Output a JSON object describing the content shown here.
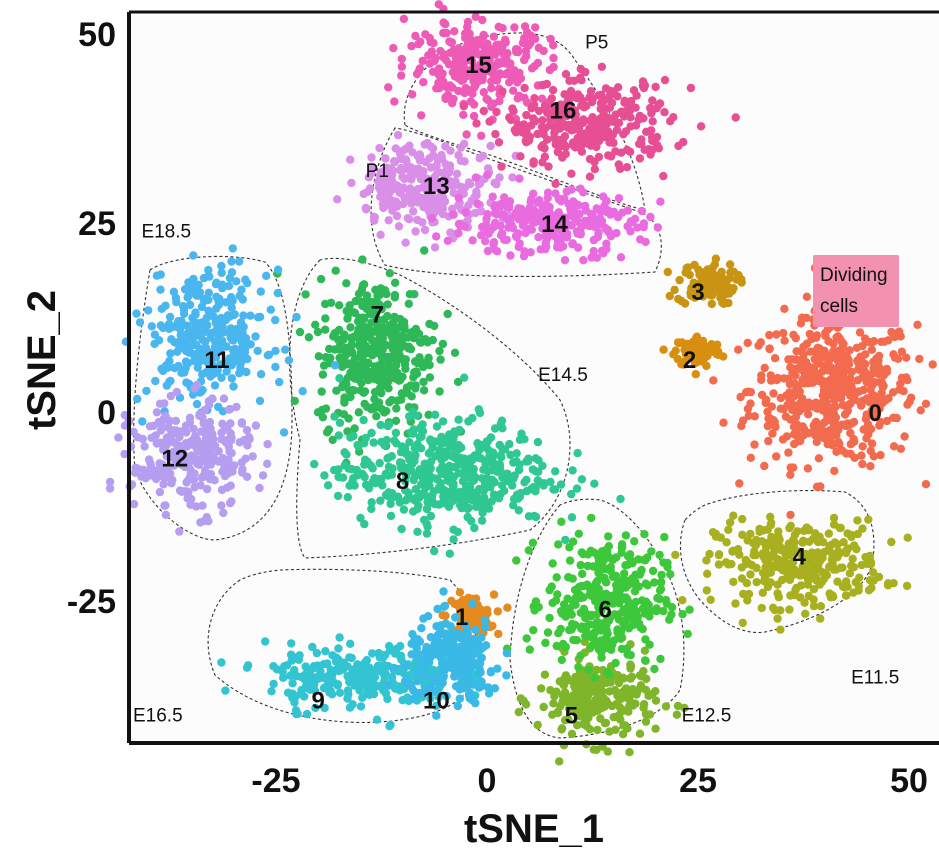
{
  "chart_data": {
    "type": "scatter",
    "title": "",
    "xlabel": "tSNE_1",
    "ylabel": "tSNE_2",
    "xlim": [
      -45,
      55
    ],
    "ylim": [
      -48,
      56
    ],
    "x_ticks": [
      -25,
      0,
      25,
      50
    ],
    "y_ticks": [
      50,
      25,
      0,
      -25
    ],
    "grid": false,
    "legend": "none",
    "clusters": [
      {
        "id": "0",
        "color": "#f26b4f",
        "center": [
          41,
          3
        ],
        "spread": [
          7,
          7
        ],
        "label_pos": [
          46,
          0
        ]
      },
      {
        "id": "1",
        "color": "#e58a1f",
        "center": [
          -2,
          -27
        ],
        "spread": [
          2,
          2
        ],
        "label_pos": [
          -3,
          -27
        ]
      },
      {
        "id": "2",
        "color": "#d88e10",
        "center": [
          25,
          8
        ],
        "spread": [
          2,
          1.5
        ],
        "label_pos": [
          24,
          7
        ]
      },
      {
        "id": "3",
        "color": "#c99412",
        "center": [
          26,
          17
        ],
        "spread": [
          2.5,
          2
        ],
        "label_pos": [
          25,
          16
        ]
      },
      {
        "id": "4",
        "color": "#a8b020",
        "center": [
          37,
          -20
        ],
        "spread": [
          7,
          4
        ],
        "label_pos": [
          37,
          -19
        ]
      },
      {
        "id": "5",
        "color": "#7fb52a",
        "center": [
          13,
          -38
        ],
        "spread": [
          5,
          4
        ],
        "label_pos": [
          10,
          -40
        ]
      },
      {
        "id": "6",
        "color": "#3cc83a",
        "center": [
          14,
          -25
        ],
        "spread": [
          5,
          6
        ],
        "label_pos": [
          14,
          -26
        ]
      },
      {
        "id": "7",
        "color": "#2eb858",
        "center": [
          -13,
          8
        ],
        "spread": [
          5,
          7
        ],
        "label_pos": [
          -13,
          13
        ]
      },
      {
        "id": "8",
        "color": "#2fc792",
        "center": [
          -5,
          -8
        ],
        "spread": [
          9,
          5
        ],
        "label_pos": [
          -10,
          -9
        ]
      },
      {
        "id": "9",
        "color": "#33c4d2",
        "center": [
          -15,
          -35
        ],
        "spread": [
          8,
          3
        ],
        "label_pos": [
          -20,
          -38
        ]
      },
      {
        "id": "10",
        "color": "#3ab8e6",
        "center": [
          -4,
          -33
        ],
        "spread": [
          4,
          4
        ],
        "label_pos": [
          -6,
          -38
        ]
      },
      {
        "id": "11",
        "color": "#4ab6ef",
        "center": [
          -33,
          10
        ],
        "spread": [
          5,
          6
        ],
        "label_pos": [
          -32,
          7
        ]
      },
      {
        "id": "12",
        "color": "#b59ef0",
        "center": [
          -35,
          -6
        ],
        "spread": [
          5,
          5
        ],
        "label_pos": [
          -37,
          -6
        ]
      },
      {
        "id": "13",
        "color": "#d98ee8",
        "center": [
          -7,
          30
        ],
        "spread": [
          6,
          4
        ],
        "label_pos": [
          -6,
          30
        ]
      },
      {
        "id": "14",
        "color": "#e96be0",
        "center": [
          7,
          25
        ],
        "spread": [
          8,
          3
        ],
        "label_pos": [
          8,
          25
        ]
      },
      {
        "id": "15",
        "color": "#ee5bb7",
        "center": [
          -1,
          46
        ],
        "spread": [
          6,
          4
        ],
        "label_pos": [
          -1,
          46
        ]
      },
      {
        "id": "16",
        "color": "#e64f94",
        "center": [
          12,
          38
        ],
        "spread": [
          7,
          4
        ],
        "label_pos": [
          9,
          40
        ]
      }
    ],
    "group_annotations": [
      {
        "label": "P5",
        "members": [
          "15",
          "16"
        ],
        "pos": [
          13,
          49
        ]
      },
      {
        "label": "P1",
        "members": [
          "13",
          "14"
        ],
        "pos": [
          -13,
          32
        ]
      },
      {
        "label": "E18.5",
        "members": [
          "11",
          "12"
        ],
        "pos": [
          -38,
          24
        ]
      },
      {
        "label": "E14.5",
        "members": [
          "7",
          "8"
        ],
        "pos": [
          9,
          5
        ]
      },
      {
        "label": "E16.5",
        "members": [
          "9",
          "10"
        ],
        "pos": [
          -39,
          -40
        ]
      },
      {
        "label": "E12.5",
        "members": [
          "5",
          "6"
        ],
        "pos": [
          26,
          -40
        ]
      },
      {
        "label": "E11.5",
        "members": [
          "4"
        ],
        "pos": [
          46,
          -35
        ]
      }
    ],
    "badge": {
      "lines": [
        "Dividing",
        "cells"
      ],
      "color": "#f291b0"
    }
  }
}
